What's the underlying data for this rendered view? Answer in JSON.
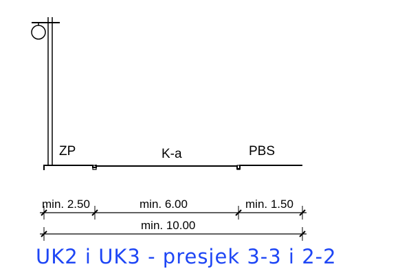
{
  "zones": {
    "zp": "ZP",
    "ka": "K-a",
    "pbs": "PBS"
  },
  "dimensions": {
    "zp_width": "min. 2.50",
    "ka_width": "min. 6.00",
    "pbs_width": "min. 1.50",
    "total_width": "min. 10.00"
  },
  "caption": "UK2 i UK3 - presjek 3-3 i 2-2",
  "colors": {
    "caption": "#1e46f5",
    "lines": "#000000"
  }
}
